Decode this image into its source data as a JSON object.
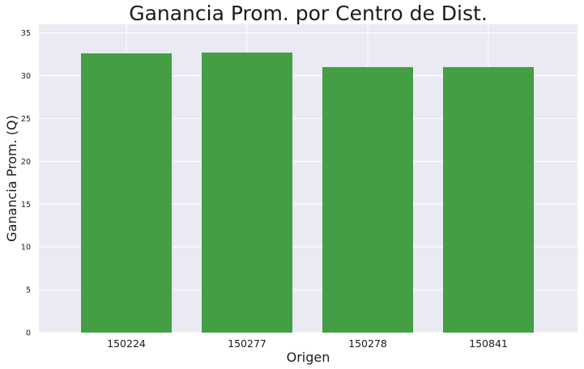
{
  "chart_data": {
    "type": "bar",
    "title": "Ganancia Prom. por Centro de Dist.",
    "xlabel": "Origen",
    "ylabel": "Ganancia Prom. (Q)",
    "categories": [
      "150224",
      "150277",
      "150278",
      "150841"
    ],
    "values": [
      32.6,
      32.7,
      31.0,
      31.0
    ],
    "ylim": [
      0,
      36
    ],
    "yticks": [
      0,
      5,
      10,
      15,
      20,
      25,
      30,
      35
    ],
    "grid": true,
    "legend": "none",
    "colors": {
      "bar": "#3a9a3a",
      "plot_background": "#eaeaf2",
      "grid": "#ffffff"
    }
  }
}
